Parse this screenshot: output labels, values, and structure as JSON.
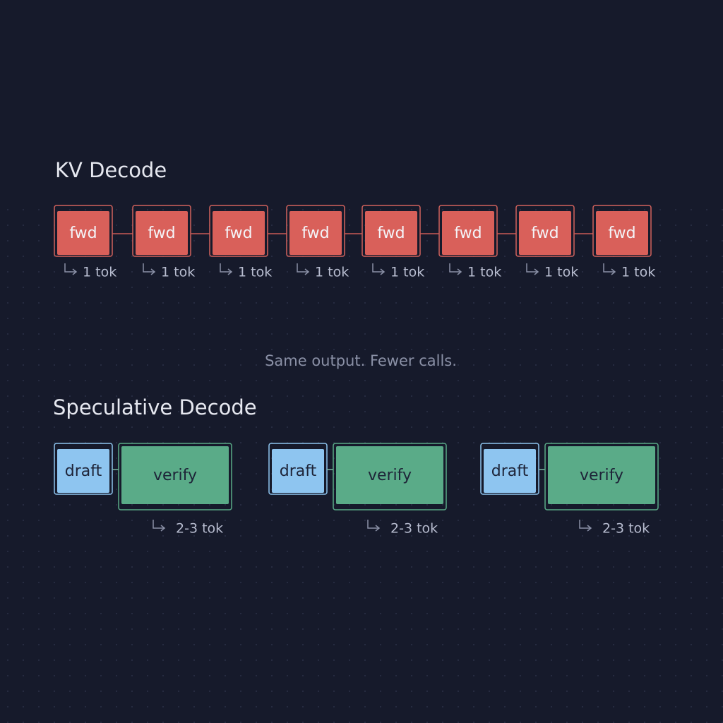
{
  "kv_decode": {
    "title": "KV Decode",
    "steps": [
      {
        "label": "fwd",
        "output": "1 tok"
      },
      {
        "label": "fwd",
        "output": "1 tok"
      },
      {
        "label": "fwd",
        "output": "1 tok"
      },
      {
        "label": "fwd",
        "output": "1 tok"
      },
      {
        "label": "fwd",
        "output": "1 tok"
      },
      {
        "label": "fwd",
        "output": "1 tok"
      },
      {
        "label": "fwd",
        "output": "1 tok"
      },
      {
        "label": "fwd",
        "output": "1 tok"
      }
    ]
  },
  "caption": "Same output. Fewer calls.",
  "speculative_decode": {
    "title": "Speculative Decode",
    "rounds": [
      {
        "draft": "draft",
        "verify": "verify",
        "output": "2-3 tok"
      },
      {
        "draft": "draft",
        "verify": "verify",
        "output": "2-3 tok"
      },
      {
        "draft": "draft",
        "verify": "verify",
        "output": "2-3 tok"
      }
    ]
  }
}
